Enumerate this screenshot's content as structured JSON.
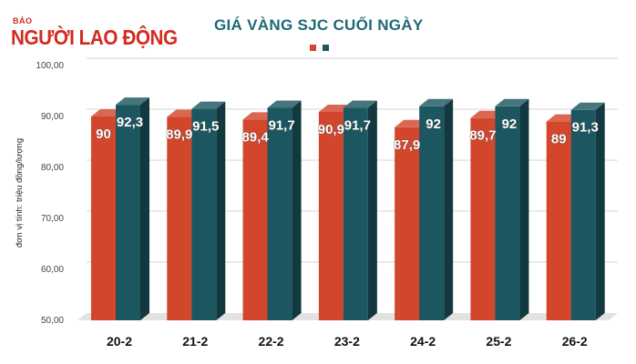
{
  "logo": {
    "small": "BÁO",
    "big": "NGƯỜI LAO ĐỘNG"
  },
  "chart_data": {
    "type": "bar",
    "title": "GIÁ VÀNG SJC CUỐI NGÀY",
    "ylabel": "đơn vị tính: triệu đồng/lượng",
    "xlabel": "",
    "ylim": [
      50,
      100
    ],
    "yticks": [
      "50,00",
      "60,00",
      "70,00",
      "80,00",
      "90,00",
      "100,00"
    ],
    "categories": [
      "20-2",
      "21-2",
      "22-2",
      "23-2",
      "24-2",
      "25-2",
      "26-2"
    ],
    "series": [
      {
        "color": "#d2462b",
        "values": [
          90,
          89.9,
          89.4,
          90.9,
          87.9,
          89.7,
          89
        ],
        "labels": [
          "90",
          "89,9",
          "89,4",
          "90,9",
          "87,9",
          "89,7",
          "89"
        ]
      },
      {
        "color": "#1c5761",
        "values": [
          92.3,
          91.5,
          91.7,
          91.7,
          92,
          92,
          91.3
        ],
        "labels": [
          "92,3",
          "91,5",
          "91,7",
          "91,7",
          "92",
          "92",
          "91,3"
        ]
      }
    ]
  }
}
